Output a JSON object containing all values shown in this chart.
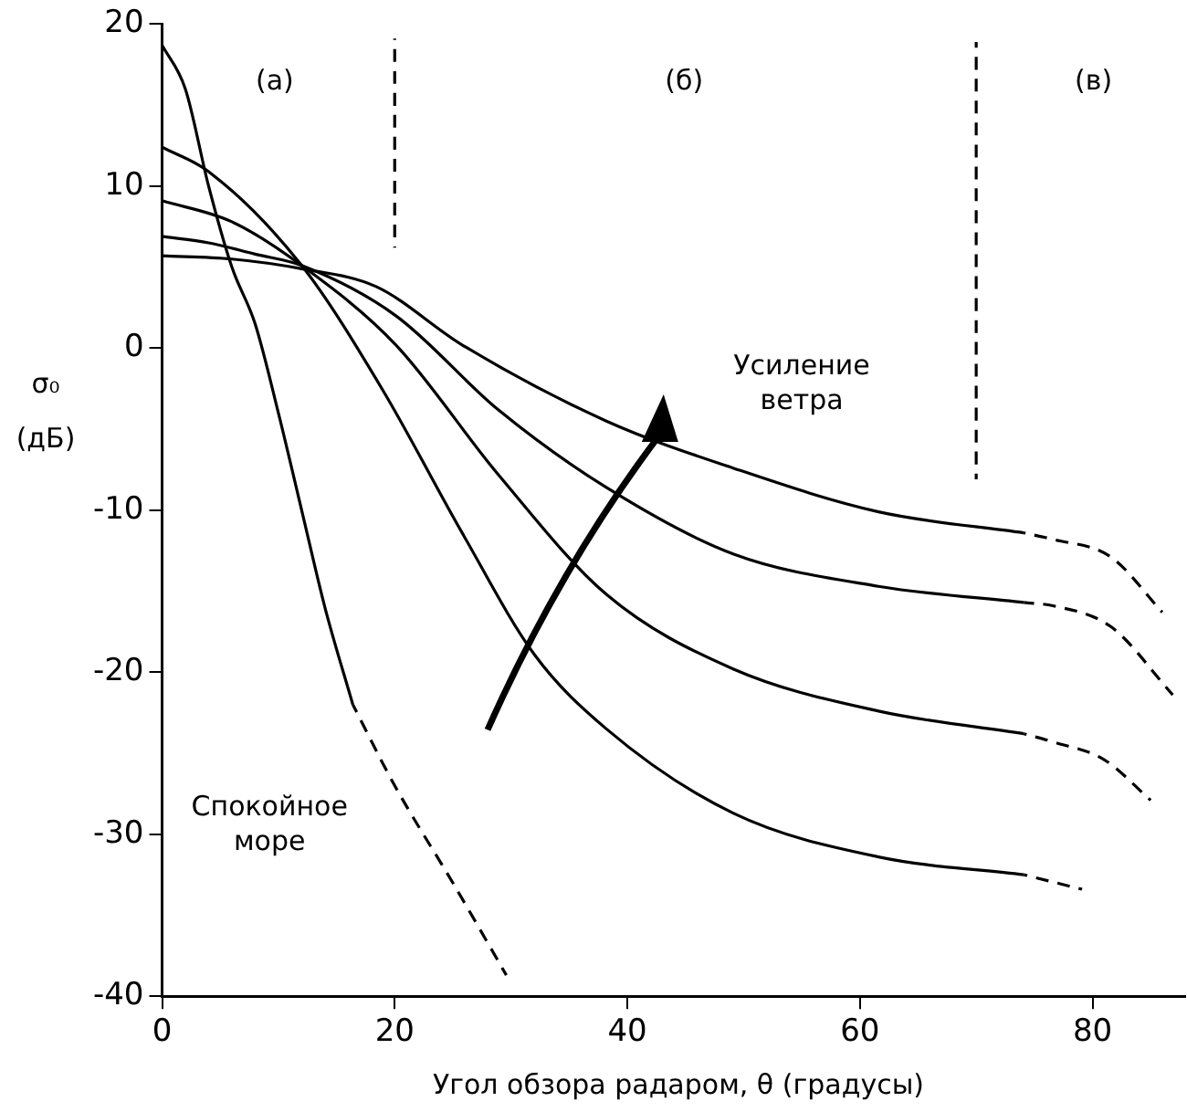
{
  "chart_data": {
    "type": "line",
    "xlabel": "Угол обзора радаром, θ (градусы)",
    "ylabel": "σ₀ (дБ)",
    "xlim": [
      0,
      88
    ],
    "ylim": [
      -40,
      20
    ],
    "xticks": [
      0,
      20,
      40,
      60,
      80
    ],
    "yticks": [
      -40,
      -30,
      -20,
      -10,
      0,
      10,
      20
    ],
    "grid": false,
    "legend": false,
    "marker": "none",
    "series": [
      {
        "color": "#000000",
        "line_style": "solid",
        "x": [
          0,
          2,
          4,
          6,
          8,
          10,
          12,
          14,
          16.4
        ],
        "values": [
          18.7,
          16,
          10,
          5,
          1.5,
          -4,
          -10,
          -16,
          -22
        ]
      },
      {
        "color": "#000000",
        "line_style": "dashed",
        "x": [
          16.4,
          20,
          25,
          29.6
        ],
        "values": [
          -22,
          -27,
          -33,
          -38.7
        ]
      },
      {
        "color": "#000000",
        "line_style": "solid",
        "x": [
          0,
          4,
          12,
          18.9,
          25.8,
          32,
          38.2,
          49.1,
          61.6,
          74.1
        ],
        "values": [
          12.4,
          10.9,
          5.1,
          -2.5,
          -11.4,
          -18.9,
          -23.5,
          -28.7,
          -31.4,
          -32.5
        ]
      },
      {
        "color": "#000000",
        "line_style": "dashed",
        "x": [
          74.1,
          79.1
        ],
        "values": [
          -32.5,
          -33.4
        ]
      },
      {
        "color": "#000000",
        "line_style": "solid",
        "x": [
          0,
          6,
          12,
          20.1,
          28.9,
          38.2,
          49.1,
          61.6,
          74.1
        ],
        "values": [
          9.1,
          7.8,
          5.1,
          0.2,
          -7.8,
          -15.2,
          -19.8,
          -22.4,
          -23.8
        ]
      },
      {
        "color": "#000000",
        "line_style": "dashed",
        "x": [
          74.1,
          76.6,
          81,
          85
        ],
        "values": [
          -23.8,
          -24.3,
          -25.4,
          -27.9
        ]
      },
      {
        "color": "#000000",
        "line_style": "solid",
        "x": [
          0,
          4,
          8,
          12,
          20.1,
          28.9,
          38.2,
          49.1,
          61.6,
          74.1
        ],
        "values": [
          6.9,
          6.5,
          5.8,
          5.1,
          2,
          -3.8,
          -8.6,
          -12.7,
          -14.7,
          -15.7
        ]
      },
      {
        "color": "#000000",
        "line_style": "dashed",
        "x": [
          74.1,
          76.6,
          81.6,
          86.9
        ],
        "values": [
          -15.7,
          -15.9,
          -17.2,
          -21.4
        ]
      },
      {
        "color": "#000000",
        "line_style": "solid",
        "x": [
          0,
          6,
          12,
          18.4,
          25.8,
          38.2,
          49.1,
          61.6,
          74.1
        ],
        "values": [
          5.7,
          5.5,
          4.9,
          3.8,
          0.2,
          -4.5,
          -7.4,
          -10.1,
          -11.4
        ]
      },
      {
        "color": "#000000",
        "line_style": "dashed",
        "x": [
          74.1,
          76.6,
          81.6,
          86
        ],
        "values": [
          -11.4,
          -11.8,
          -12.9,
          -16.3
        ]
      },
      {
        "color": "#000000",
        "line_style": "dashed",
        "x": [
          20,
          20
        ],
        "values": [
          6.2,
          19.1
        ]
      },
      {
        "color": "#000000",
        "line_style": "dashed",
        "x": [
          70,
          70
        ],
        "values": [
          -8.1,
          18.9
        ]
      }
    ],
    "annotations": [
      "(а)",
      "(б)",
      "(в)",
      "Усиление ветра",
      "Спокойное море"
    ]
  }
}
